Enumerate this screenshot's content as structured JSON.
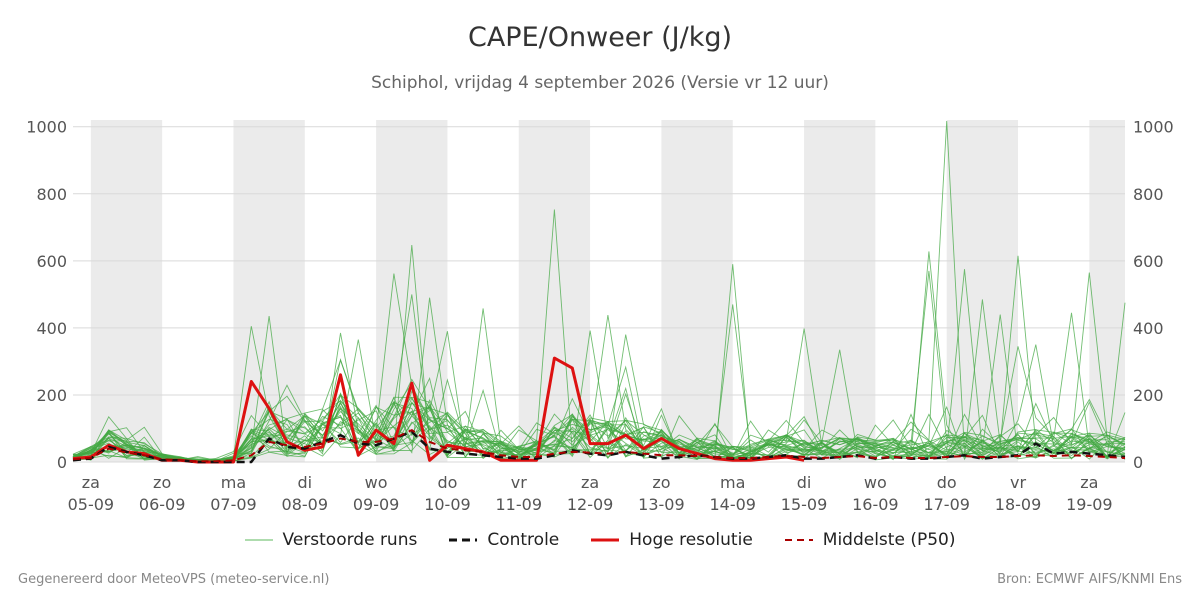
{
  "header": {
    "title": "CAPE/Onweer (J/kg)",
    "subtitle": "Schiphol, vrijdag  4 september 2026 (Versie vr 12 uur)"
  },
  "footer": {
    "left": "Gegenereerd door MeteoVPS (meteo-service.nl)",
    "right": "Bron: ECMWF AIFS/KNMI Ens"
  },
  "legend": {
    "items": [
      {
        "label": "Verstoorde runs",
        "color": "#5cb85c",
        "style": "solid-thin"
      },
      {
        "label": "Controle",
        "color": "#111111",
        "style": "dashed"
      },
      {
        "label": "Hoge resolutie",
        "color": "#dd1111",
        "style": "solid"
      },
      {
        "label": "Middelste (P50)",
        "color": "#aa0000",
        "style": "dashed"
      }
    ]
  },
  "chart_data": {
    "type": "line",
    "title": "CAPE/Onweer (J/kg)",
    "subtitle": "Schiphol, vrijdag  4 september 2026 (Versie vr 12 uur)",
    "ylim": [
      0,
      1020
    ],
    "yticks": [
      0,
      200,
      400,
      600,
      800,
      1000
    ],
    "x_range_days": [
      -0.25,
      14.5
    ],
    "x_unit": "days from 05-09 00:00",
    "day_labels": [
      {
        "day": "za",
        "date": "05-09"
      },
      {
        "day": "zo",
        "date": "06-09"
      },
      {
        "day": "ma",
        "date": "07-09"
      },
      {
        "day": "di",
        "date": "08-09"
      },
      {
        "day": "wo",
        "date": "09-09"
      },
      {
        "day": "do",
        "date": "10-09"
      },
      {
        "day": "vr",
        "date": "11-09"
      },
      {
        "day": "za",
        "date": "12-09"
      },
      {
        "day": "zo",
        "date": "13-09"
      },
      {
        "day": "ma",
        "date": "14-09"
      },
      {
        "day": "di",
        "date": "15-09"
      },
      {
        "day": "wo",
        "date": "16-09"
      },
      {
        "day": "do",
        "date": "17-09"
      },
      {
        "day": "vr",
        "date": "18-09"
      },
      {
        "day": "za",
        "date": "19-09"
      }
    ],
    "shaded_day_offsets": [
      0,
      2,
      4,
      6,
      8,
      10,
      12,
      14
    ],
    "grid": true,
    "legend_position": "bottom",
    "series": [
      {
        "name": "Hoge resolutie",
        "color": "#dd1111",
        "x": [
          -0.25,
          0,
          0.25,
          0.5,
          0.75,
          1,
          1.25,
          1.5,
          1.75,
          2,
          2.25,
          2.5,
          2.75,
          3,
          3.25,
          3.5,
          3.75,
          4,
          4.25,
          4.5,
          4.75,
          5,
          5.25,
          5.5,
          5.75,
          6,
          6.25,
          6.5,
          6.75,
          7,
          7.25,
          7.5,
          7.75,
          8,
          8.25,
          8.5,
          8.75,
          9,
          9.25,
          9.5,
          9.75,
          10
        ],
        "y": [
          10,
          15,
          50,
          30,
          25,
          5,
          5,
          0,
          0,
          0,
          240,
          160,
          60,
          35,
          45,
          260,
          20,
          95,
          55,
          235,
          5,
          50,
          40,
          30,
          5,
          5,
          5,
          310,
          280,
          55,
          55,
          80,
          40,
          70,
          40,
          25,
          10,
          5,
          5,
          10,
          15,
          5
        ]
      },
      {
        "name": "Controle",
        "color": "#111111",
        "x": [
          -0.25,
          0,
          0.25,
          0.5,
          0.75,
          1,
          1.25,
          1.5,
          1.75,
          2,
          2.25,
          2.5,
          2.75,
          3,
          3.25,
          3.5,
          3.75,
          4,
          4.25,
          4.5,
          4.75,
          5,
          5.25,
          5.5,
          5.75,
          6,
          6.25,
          6.5,
          6.75,
          7,
          7.25,
          7.5,
          7.75,
          8,
          8.25,
          8.5,
          8.75,
          9,
          9.25,
          9.5,
          9.75,
          10,
          10.25,
          10.5,
          10.75,
          11,
          11.25,
          11.5,
          11.75,
          12,
          12.25,
          12.5,
          12.75,
          13,
          13.25,
          13.5,
          13.75,
          14,
          14.25,
          14.5
        ],
        "y": [
          5,
          10,
          45,
          30,
          20,
          5,
          5,
          0,
          0,
          0,
          0,
          70,
          45,
          40,
          60,
          80,
          55,
          50,
          70,
          90,
          40,
          30,
          25,
          20,
          15,
          10,
          10,
          20,
          35,
          25,
          20,
          30,
          20,
          10,
          15,
          20,
          15,
          10,
          10,
          15,
          20,
          10,
          10,
          15,
          20,
          10,
          15,
          10,
          10,
          15,
          20,
          10,
          15,
          20,
          55,
          25,
          30,
          25,
          20,
          15
        ]
      },
      {
        "name": "Middelste (P50)",
        "color": "#aa0000",
        "x": [
          -0.25,
          0,
          0.25,
          0.5,
          0.75,
          1,
          1.25,
          1.5,
          1.75,
          2,
          2.25,
          2.5,
          2.75,
          3,
          3.25,
          3.5,
          3.75,
          4,
          4.25,
          4.5,
          4.75,
          5,
          5.25,
          5.5,
          5.75,
          6,
          6.25,
          6.5,
          6.75,
          7,
          7.25,
          7.5,
          7.75,
          8,
          8.25,
          8.5,
          8.75,
          9,
          9.25,
          9.5,
          9.75,
          10,
          10.25,
          10.5,
          10.75,
          11,
          11.25,
          11.5,
          11.75,
          12,
          12.25,
          12.5,
          12.75,
          13,
          13.25,
          13.5,
          13.75,
          14,
          14.25,
          14.5
        ],
        "y": [
          8,
          12,
          40,
          28,
          20,
          8,
          5,
          2,
          2,
          5,
          20,
          60,
          50,
          45,
          55,
          70,
          60,
          60,
          70,
          95,
          60,
          40,
          35,
          30,
          20,
          15,
          15,
          25,
          30,
          28,
          25,
          30,
          25,
          20,
          20,
          18,
          15,
          12,
          12,
          15,
          18,
          15,
          12,
          15,
          18,
          12,
          15,
          12,
          12,
          15,
          18,
          15,
          15,
          18,
          20,
          18,
          20,
          18,
          15,
          12
        ]
      }
    ],
    "ensemble": {
      "name": "Verstoorde runs",
      "color": "#43a843",
      "members": 30,
      "x_step_days": 0.25,
      "x_start": -0.25,
      "base_level": [
        15,
        30,
        60,
        45,
        35,
        15,
        10,
        5,
        5,
        10,
        60,
        110,
        80,
        90,
        100,
        130,
        100,
        110,
        120,
        150,
        120,
        90,
        70,
        60,
        40,
        30,
        40,
        70,
        90,
        80,
        75,
        80,
        70,
        60,
        50,
        45,
        40,
        30,
        35,
        45,
        50,
        40,
        40,
        45,
        50,
        40,
        45,
        40,
        40,
        50,
        55,
        50,
        50,
        55,
        60,
        55,
        60,
        55,
        50,
        45
      ],
      "peaks": [
        {
          "x": 2.25,
          "y": 405
        },
        {
          "x": 2.5,
          "y": 435
        },
        {
          "x": 3.5,
          "y": 385
        },
        {
          "x": 3.75,
          "y": 365
        },
        {
          "x": 4.25,
          "y": 562
        },
        {
          "x": 4.5,
          "y": 647
        },
        {
          "x": 4.75,
          "y": 490
        },
        {
          "x": 5.0,
          "y": 390
        },
        {
          "x": 5.5,
          "y": 458
        },
        {
          "x": 6.5,
          "y": 753
        },
        {
          "x": 7.0,
          "y": 392
        },
        {
          "x": 7.25,
          "y": 438
        },
        {
          "x": 7.5,
          "y": 380
        },
        {
          "x": 9.0,
          "y": 590
        },
        {
          "x": 9.0,
          "y": 470
        },
        {
          "x": 10.0,
          "y": 398
        },
        {
          "x": 10.5,
          "y": 335
        },
        {
          "x": 11.75,
          "y": 628
        },
        {
          "x": 12.0,
          "y": 1017
        },
        {
          "x": 12.25,
          "y": 575
        },
        {
          "x": 12.5,
          "y": 485
        },
        {
          "x": 12.75,
          "y": 440
        },
        {
          "x": 13.0,
          "y": 615
        },
        {
          "x": 13.25,
          "y": 350
        },
        {
          "x": 13.75,
          "y": 445
        },
        {
          "x": 14.0,
          "y": 565
        },
        {
          "x": 14.5,
          "y": 475
        },
        {
          "x": 13.0,
          "y": 345
        },
        {
          "x": 11.75,
          "y": 570
        },
        {
          "x": 4.5,
          "y": 500
        }
      ]
    }
  }
}
